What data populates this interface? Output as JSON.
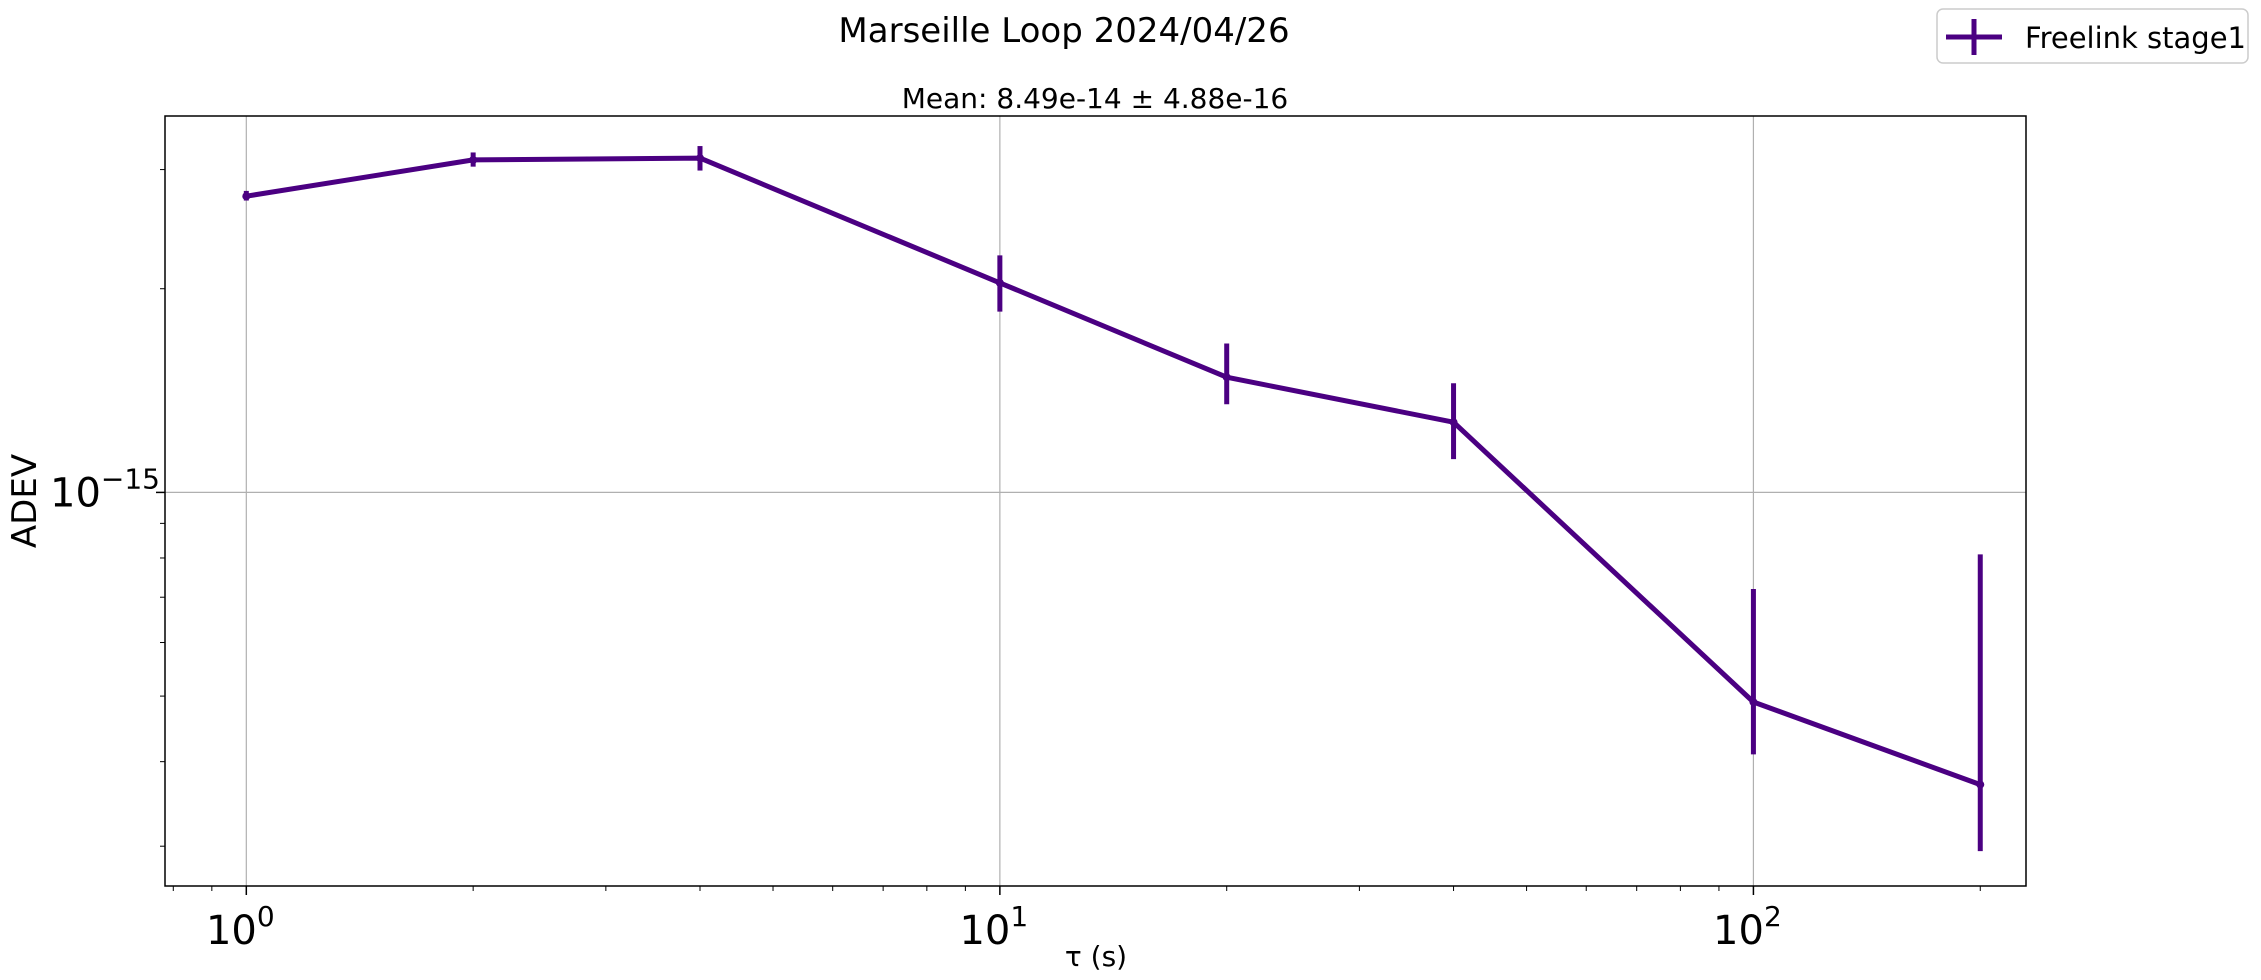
{
  "chart_data": {
    "type": "line",
    "title": "Marseille Loop 2024/04/26",
    "subtitle": "Mean: 8.49e-14 ± 4.88e-16",
    "xlabel": "τ (s)",
    "ylabel": "ADEV",
    "xscale": "log",
    "yscale": "log",
    "xlim": [
      0.78,
      230
    ],
    "ylim": [
      2.62e-16,
      3.6e-15
    ],
    "grid": true,
    "legend_position": "top-right",
    "x_ticks": [
      {
        "value": 1,
        "base": "10",
        "exp": "0"
      },
      {
        "value": 10,
        "base": "10",
        "exp": "1"
      },
      {
        "value": 100,
        "base": "10",
        "exp": "2"
      }
    ],
    "y_ticks": [
      {
        "value": 1e-15,
        "base": "10",
        "exp": "−15"
      }
    ],
    "series": [
      {
        "name": "Freelink stage1",
        "color": "#4b0082",
        "x": [
          1,
          2,
          4,
          10,
          20,
          40,
          100,
          200
        ],
        "y": [
          2.74e-15,
          3.1e-15,
          3.12e-15,
          2.04e-15,
          1.48e-15,
          1.27e-15,
          4.9e-16,
          3.7e-16
        ],
        "yerr_low": [
          2.7e-15,
          3.03e-15,
          2.99e-15,
          1.85e-15,
          1.35e-15,
          1.12e-15,
          4.1e-16,
          2.95e-16
        ],
        "yerr_high": [
          2.79e-15,
          3.18e-15,
          3.25e-15,
          2.24e-15,
          1.66e-15,
          1.45e-15,
          7.2e-16,
          8.1e-16
        ]
      }
    ]
  }
}
